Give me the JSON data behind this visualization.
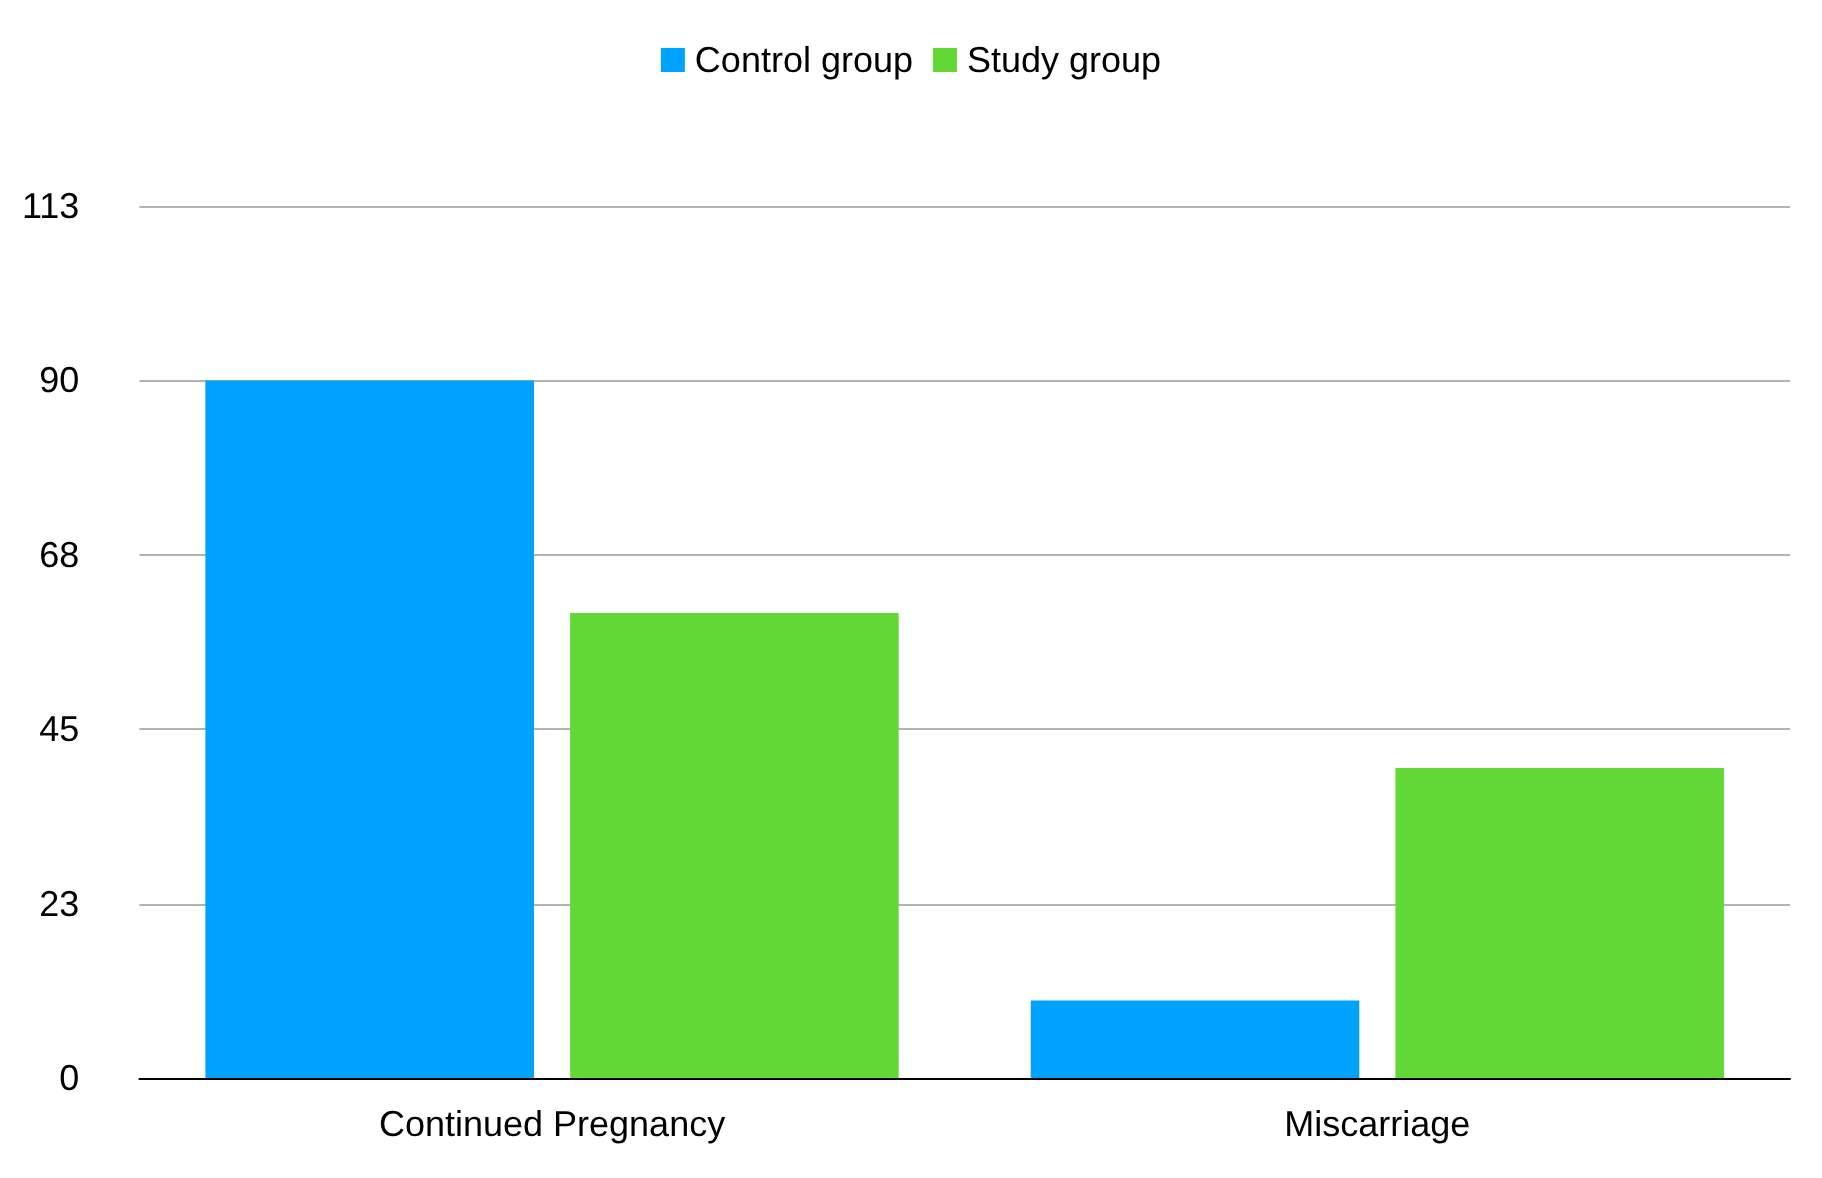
{
  "chart_data": {
    "type": "bar",
    "categories": [
      "Continued Pregnancy",
      "Miscarriage"
    ],
    "series": [
      {
        "name": "Control group",
        "color": "#00a2ff",
        "values": [
          90,
          10
        ]
      },
      {
        "name": "Study group",
        "color": "#61d836",
        "values": [
          60,
          40
        ]
      }
    ],
    "ylim": [
      0,
      112.5
    ],
    "yticks": [
      0,
      {
        "value": 22.5,
        "label": "23"
      },
      45,
      {
        "value": 67.5,
        "label": "68"
      },
      90,
      {
        "value": 112.5,
        "label": "113"
      }
    ],
    "grid": "y",
    "legend": "top"
  }
}
